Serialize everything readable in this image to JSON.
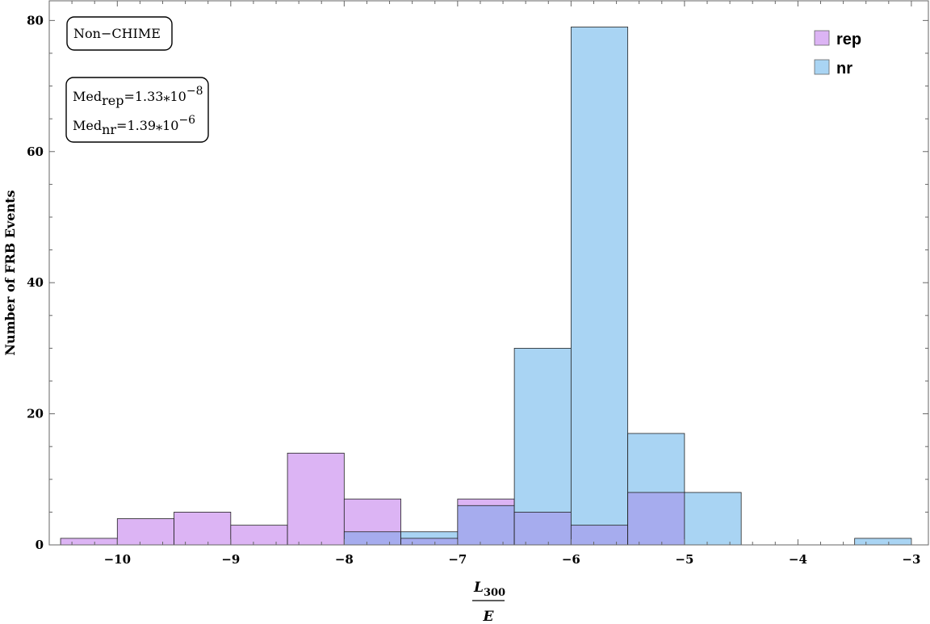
{
  "chart_data": {
    "type": "bar",
    "title": "",
    "xlabel": {
      "numerator": "L",
      "numerator_sub": "300",
      "denominator": "E"
    },
    "ylabel": "Number of FRB Events",
    "xlim": [
      -10.6,
      -2.85
    ],
    "ylim": [
      0,
      83
    ],
    "xticks": [
      -10,
      -9,
      -8,
      -7,
      -6,
      -5,
      -4,
      -3
    ],
    "xtick_labels": [
      "−10",
      "−9",
      "−8",
      "−7",
      "−6",
      "−5",
      "−4",
      "−3"
    ],
    "yticks": [
      0,
      20,
      40,
      60,
      80
    ],
    "ytick_labels": [
      "0",
      "20",
      "40",
      "60",
      "80"
    ],
    "bin_width": 1,
    "grid": false,
    "legend_position": "top-right",
    "series": [
      {
        "name": "rep",
        "color": "#dcb4f4",
        "bins": [
          {
            "start": -10.5,
            "count": 1
          },
          {
            "start": -10.0,
            "count": 4
          },
          {
            "start": -9.5,
            "count": 5
          },
          {
            "start": -9.0,
            "count": 3
          },
          {
            "start": -8.5,
            "count": 14
          },
          {
            "start": -8.0,
            "count": 7
          },
          {
            "start": -7.5,
            "count": 1
          },
          {
            "start": -7.0,
            "count": 7
          },
          {
            "start": -6.5,
            "count": 5
          },
          {
            "start": -6.0,
            "count": 3
          },
          {
            "start": -5.5,
            "count": 8
          }
        ]
      },
      {
        "name": "nr",
        "color": "#a9d4f3",
        "bins": [
          {
            "start": -8.0,
            "count": 2
          },
          {
            "start": -7.5,
            "count": 2
          },
          {
            "start": -7.0,
            "count": 6
          },
          {
            "start": -6.5,
            "count": 30
          },
          {
            "start": -6.0,
            "count": 79
          },
          {
            "start": -5.5,
            "count": 17
          },
          {
            "start": -5.0,
            "count": 8
          },
          {
            "start": -3.5,
            "count": 1
          }
        ]
      }
    ],
    "overlap_color": "#a6acee",
    "annotations": {
      "sample_label": "Non−CHIME",
      "median_rep": {
        "prefix": "Med",
        "sub": "rep",
        "value": "=1.33⁎10",
        "exp": "−8"
      },
      "median_nr": {
        "prefix": "Med",
        "sub": "nr",
        "value": "=1.39⁎10",
        "exp": "−6"
      }
    }
  }
}
